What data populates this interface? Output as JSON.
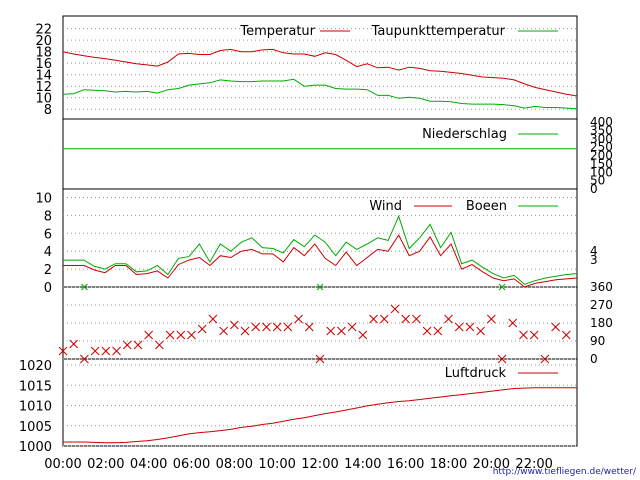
{
  "colors": {
    "primary": "#cc0000",
    "secondary": "#00aa00",
    "axis": "#000000",
    "grid": "#999999"
  },
  "x_ticks": [
    "00:00",
    "02:00",
    "04:00",
    "06:00",
    "08:00",
    "10:00",
    "12:00",
    "14:00",
    "16:00",
    "18:00",
    "20:00",
    "22:00"
  ],
  "footer": "http://www.tiefliegen.de/wetter/",
  "chart_data": [
    {
      "type": "line",
      "ylim": [
        7,
        23.5
      ],
      "y_ticks": [
        8,
        10,
        12,
        14,
        16,
        18,
        20,
        22
      ],
      "grid": true,
      "legend_placement": "top-right",
      "series": [
        {
          "name": "Temperatur",
          "color": "#cc0000",
          "values": [
            18.0,
            17.6,
            17.3,
            17.0,
            16.8,
            16.5,
            16.2,
            15.9,
            15.7,
            15.5,
            16.2,
            17.6,
            17.7,
            17.5,
            17.5,
            18.2,
            18.4,
            18.0,
            18.0,
            18.3,
            18.4,
            17.8,
            17.6,
            17.6,
            17.2,
            17.8,
            17.5,
            16.5,
            15.4,
            15.9,
            15.2,
            15.3,
            14.8,
            15.3,
            15.1,
            14.7,
            14.6,
            14.4,
            14.2,
            13.9,
            13.6,
            13.5,
            13.4,
            13.1,
            12.4,
            11.8,
            11.4,
            11.0,
            10.6,
            10.3
          ]
        },
        {
          "name": "Taupunkttemperatur",
          "color": "#00aa00",
          "values": [
            10.6,
            10.7,
            11.4,
            11.3,
            11.2,
            11.0,
            11.1,
            11.0,
            11.1,
            10.8,
            11.4,
            11.6,
            12.2,
            12.4,
            12.6,
            13.1,
            12.9,
            12.8,
            12.8,
            12.9,
            12.9,
            12.9,
            13.2,
            12.0,
            12.2,
            12.2,
            11.6,
            11.5,
            11.5,
            11.4,
            10.4,
            10.4,
            9.9,
            10.1,
            9.9,
            9.4,
            9.4,
            9.3,
            9.0,
            8.9,
            8.9,
            8.9,
            8.8,
            8.6,
            8.2,
            8.5,
            8.3,
            8.3,
            8.2,
            8.1
          ]
        }
      ]
    },
    {
      "type": "line",
      "ylim": [
        0,
        400
      ],
      "y_ticks_right": [
        0,
        50,
        100,
        150,
        200,
        250,
        300,
        350,
        400
      ],
      "grid": false,
      "legend_placement": "top-right",
      "series": [
        {
          "name": "Niederschlag",
          "color": "#00aa00",
          "values": [
            240,
            240,
            240,
            240,
            240,
            240,
            240,
            240,
            240,
            240,
            240,
            240,
            240,
            240,
            240,
            240,
            240,
            240,
            240,
            240,
            240,
            240,
            240,
            240,
            240,
            240,
            240,
            240,
            240,
            240,
            240,
            240,
            240,
            240,
            240,
            240,
            240,
            240,
            240,
            240,
            240,
            240,
            240,
            240,
            240,
            240,
            240,
            240,
            240,
            240
          ]
        }
      ]
    },
    {
      "type": "line",
      "ylim": [
        0,
        10.5
      ],
      "y_ticks": [
        0,
        2,
        4,
        6,
        8,
        10
      ],
      "y_ticks_right": [
        3,
        4
      ],
      "grid": true,
      "legend_placement": "top-right",
      "series": [
        {
          "name": "Wind",
          "color": "#cc0000",
          "values": [
            2.4,
            2.4,
            2.4,
            1.9,
            1.6,
            2.4,
            2.4,
            1.4,
            1.5,
            1.8,
            1.0,
            2.5,
            3.0,
            3.3,
            2.4,
            3.5,
            3.3,
            4.0,
            4.2,
            3.7,
            3.7,
            2.8,
            4.4,
            3.5,
            4.8,
            3.2,
            2.4,
            3.9,
            2.4,
            3.3,
            4.2,
            4.0,
            5.8,
            3.5,
            4.0,
            5.6,
            3.5,
            4.8,
            2.0,
            2.5,
            1.7,
            1.0,
            0.7,
            0.9,
            0.0,
            0.4,
            0.6,
            0.8,
            0.9,
            1.0
          ]
        },
        {
          "name": "Boeen",
          "color": "#00aa00",
          "values": [
            3.0,
            3.0,
            3.0,
            2.3,
            2.0,
            2.6,
            2.6,
            1.7,
            1.8,
            2.4,
            1.4,
            3.2,
            3.4,
            4.8,
            2.8,
            4.8,
            4.0,
            5.0,
            5.5,
            4.4,
            4.3,
            3.8,
            5.3,
            4.5,
            5.8,
            5.0,
            3.5,
            5.0,
            4.2,
            4.8,
            5.5,
            5.2,
            7.9,
            4.3,
            5.5,
            7.0,
            4.4,
            6.1,
            2.6,
            3.0,
            2.2,
            1.5,
            1.0,
            1.3,
            0.3,
            0.7,
            1.0,
            1.2,
            1.4,
            1.5
          ]
        }
      ]
    },
    {
      "type": "scatter",
      "ylim": [
        0,
        360
      ],
      "y_ticks_right": [
        0,
        90,
        180,
        270,
        360
      ],
      "grid": true,
      "x_hours": [
        0,
        0.5,
        1,
        1.5,
        2,
        2.5,
        3,
        3.5,
        4,
        4.5,
        5,
        5.5,
        6,
        6.5,
        7,
        7.5,
        8,
        8.5,
        9,
        9.5,
        10,
        10.5,
        11,
        11.5,
        12,
        12.5,
        13,
        13.5,
        14,
        14.5,
        15,
        15.5,
        16,
        16.5,
        17,
        17.5,
        18,
        18.5,
        19,
        19.5,
        20,
        20.5,
        21,
        21.5,
        22,
        22.5,
        23,
        23.5
      ],
      "values": [
        40,
        75,
        0,
        40,
        40,
        40,
        70,
        70,
        120,
        70,
        120,
        120,
        120,
        150,
        200,
        140,
        170,
        140,
        160,
        160,
        160,
        160,
        200,
        160,
        0,
        140,
        140,
        160,
        120,
        200,
        200,
        250,
        200,
        200,
        140,
        140,
        200,
        160,
        160,
        140,
        200,
        0,
        180,
        120,
        120,
        0,
        160,
        120
      ]
    },
    {
      "type": "line",
      "ylim": [
        1000,
        1021
      ],
      "y_ticks": [
        1000,
        1005,
        1010,
        1015,
        1020
      ],
      "grid": true,
      "legend_placement": "top-right",
      "series": [
        {
          "name": "Luftdruck",
          "color": "#cc0000",
          "values": [
            1001.0,
            1001.0,
            1001.0,
            1000.9,
            1000.8,
            1000.8,
            1000.9,
            1001.1,
            1001.3,
            1001.6,
            1002.0,
            1002.5,
            1003.0,
            1003.3,
            1003.5,
            1003.8,
            1004.1,
            1004.6,
            1004.9,
            1005.3,
            1005.6,
            1006.1,
            1006.6,
            1007.0,
            1007.5,
            1008.0,
            1008.4,
            1008.9,
            1009.4,
            1009.9,
            1010.3,
            1010.7,
            1011.0,
            1011.2,
            1011.5,
            1011.8,
            1012.1,
            1012.4,
            1012.7,
            1013.0,
            1013.3,
            1013.6,
            1013.9,
            1014.2,
            1014.3,
            1014.4,
            1014.4,
            1014.4,
            1014.4,
            1014.4
          ]
        }
      ]
    }
  ]
}
